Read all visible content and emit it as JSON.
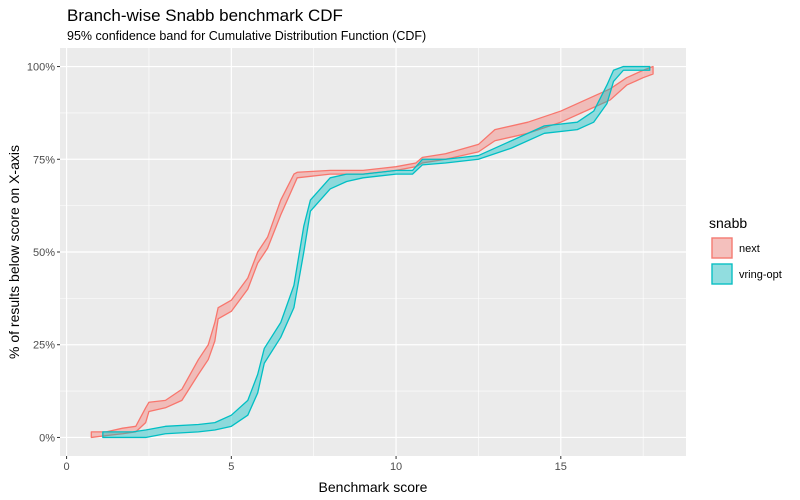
{
  "chart_data": {
    "type": "area",
    "title": "Branch-wise Snabb benchmark CDF",
    "subtitle": "95% confidence band for Cumulative Distribution Function (CDF)",
    "xlabel": "Benchmark score",
    "ylabel": "% of results below score on X-axis",
    "xlim": [
      -0.2,
      18.8
    ],
    "ylim": [
      -5,
      105
    ],
    "xticks": [
      0,
      5,
      10,
      15
    ],
    "xtick_labels": [
      "0",
      "5",
      "10",
      "15"
    ],
    "yticks": [
      0,
      25,
      50,
      75,
      100
    ],
    "ytick_labels": [
      "0%",
      "25%",
      "50%",
      "75%",
      "100%"
    ],
    "grid": true,
    "legend": {
      "title": "snabb",
      "position": "right"
    },
    "series": [
      {
        "name": "next",
        "color": "#F8766D",
        "x": [
          0.75,
          1.2,
          1.7,
          2.1,
          2.4,
          2.5,
          3.0,
          3.5,
          4.0,
          4.3,
          4.5,
          4.6,
          5.0,
          5.5,
          5.8,
          6.1,
          6.5,
          6.9,
          7.0,
          8,
          9,
          10,
          10.6,
          10.8,
          11.5,
          12.5,
          13,
          14,
          15,
          16,
          16.5,
          17.0,
          17.5,
          17.8
        ],
        "lower": [
          0,
          0.5,
          1,
          1.5,
          4,
          7,
          8,
          10,
          17,
          21,
          26,
          32,
          34,
          40,
          47,
          51,
          60,
          68,
          70,
          71,
          71,
          72,
          73,
          74,
          75,
          77,
          80,
          82,
          85,
          89,
          91,
          95,
          97,
          98
        ],
        "upper": [
          1.5,
          1.5,
          2.5,
          3,
          8,
          9.5,
          10,
          13,
          21,
          25,
          31,
          35,
          37,
          43,
          50,
          54,
          64,
          71,
          71.5,
          72,
          72,
          73,
          74,
          75.5,
          76.5,
          79,
          83,
          85,
          88,
          92,
          94,
          97,
          99,
          100
        ]
      },
      {
        "name": "vring-opt",
        "color": "#00BFC4",
        "x": [
          1.1,
          2.0,
          2.4,
          3.0,
          4.0,
          4.5,
          5.0,
          5.5,
          5.8,
          6.0,
          6.5,
          6.9,
          7.2,
          7.4,
          8.0,
          8.5,
          9.0,
          10.0,
          10.5,
          10.8,
          11.5,
          12.5,
          13.5,
          14.5,
          15.5,
          16.0,
          16.4,
          16.6,
          16.9,
          17.7
        ],
        "lower": [
          0,
          0,
          0,
          1,
          1.5,
          2,
          3,
          6,
          12,
          20,
          27,
          35,
          50,
          61,
          67,
          69,
          70,
          71,
          71,
          73.5,
          74,
          75,
          78,
          82,
          83,
          85,
          90,
          96,
          99,
          99
        ],
        "upper": [
          1.5,
          1.5,
          2,
          3,
          3.5,
          4,
          6,
          10,
          17,
          24,
          31,
          41,
          57,
          64,
          70,
          71,
          71,
          72,
          72,
          75,
          75,
          76,
          80,
          84,
          85,
          88,
          95,
          99,
          100,
          100
        ]
      }
    ]
  }
}
